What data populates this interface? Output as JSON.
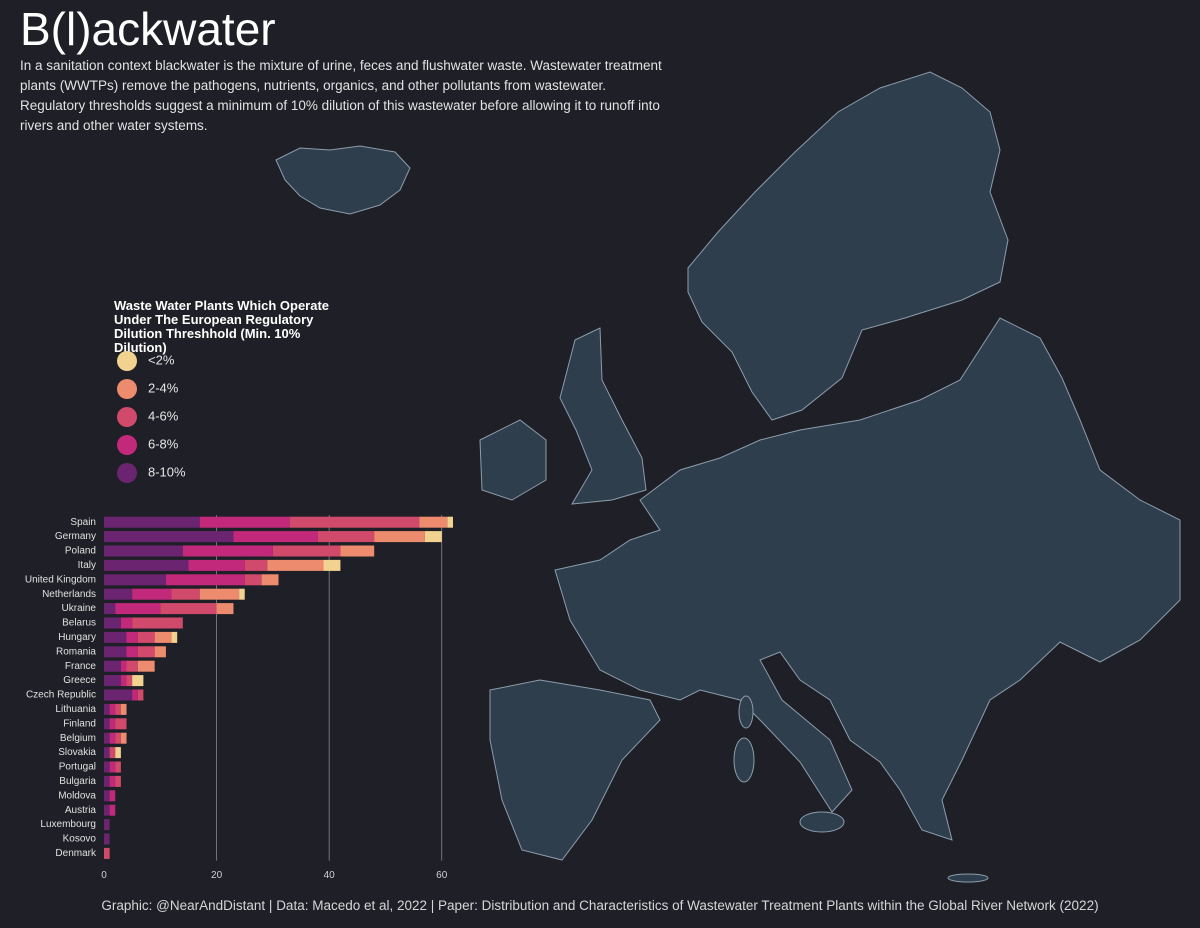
{
  "chart_data": {
    "type": "bar",
    "orientation": "horizontal",
    "stacked": true,
    "title": "B(l)ackwater",
    "subtitle": "In a sanitation context blackwater is the mixture of urine, feces and flushwater waste. Wastewater treatment plants (WWTPs) remove the pathogens, nutrients, organics, and other pollutants from wastewater. Regulatory thresholds suggest a minimum of 10% dilution of this wastewater before allowing it to runoff into rivers and other water systems.",
    "legend": {
      "title": "Waste Water Plants Which Operate Under The European Regulatory Dilution Threshhold (Min. 10% Dilution)"
    },
    "source": "Graphic: @NearAndDistant | Data: Macedo et al, 2022 | Paper: Distribution and Characteristics of Wastewater Treatment Plants within the Global River Network (2022)",
    "categories": [
      "Spain",
      "Germany",
      "Poland",
      "Italy",
      "United Kingdom",
      "Netherlands",
      "Ukraine",
      "Belarus",
      "Hungary",
      "Romania",
      "France",
      "Greece",
      "Czech Republic",
      "Lithuania",
      "Finland",
      "Belgium",
      "Slovakia",
      "Portugal",
      "Bulgaria",
      "Moldova",
      "Austria",
      "Luxembourg",
      "Kosovo",
      "Denmark"
    ],
    "series": [
      {
        "name": "8-10%",
        "color": "#6b2470",
        "values": [
          17,
          23,
          14,
          15,
          11,
          5,
          2,
          3,
          4,
          4,
          3,
          3,
          5,
          1,
          1,
          1,
          1,
          1,
          1,
          1,
          1,
          1,
          1,
          0
        ]
      },
      {
        "name": "6-8%",
        "color": "#c2297a",
        "values": [
          16,
          15,
          16,
          10,
          14,
          7,
          8,
          2,
          2,
          2,
          1,
          1,
          1,
          1,
          1,
          1,
          0,
          1,
          1,
          1,
          1,
          0,
          0,
          0
        ]
      },
      {
        "name": "4-6%",
        "color": "#d24a6b",
        "values": [
          23,
          10,
          12,
          4,
          3,
          5,
          10,
          9,
          3,
          3,
          2,
          1,
          1,
          1,
          2,
          1,
          1,
          1,
          1,
          0,
          0,
          0,
          0,
          1
        ]
      },
      {
        "name": "2-4%",
        "color": "#ed8b6f",
        "values": [
          5,
          9,
          6,
          10,
          3,
          7,
          3,
          0,
          3,
          2,
          3,
          0,
          0,
          1,
          0,
          1,
          0,
          0,
          0,
          0,
          0,
          0,
          0,
          0
        ]
      },
      {
        "name": "<2%",
        "color": "#f2d28f",
        "values": [
          1,
          3,
          0,
          3,
          0,
          1,
          0,
          0,
          1,
          0,
          0,
          2,
          0,
          0,
          0,
          0,
          1,
          0,
          0,
          0,
          0,
          0,
          0,
          0
        ]
      }
    ],
    "xlim": [
      0,
      62
    ],
    "xticks": [
      0,
      20,
      40,
      60
    ],
    "grid": true
  }
}
